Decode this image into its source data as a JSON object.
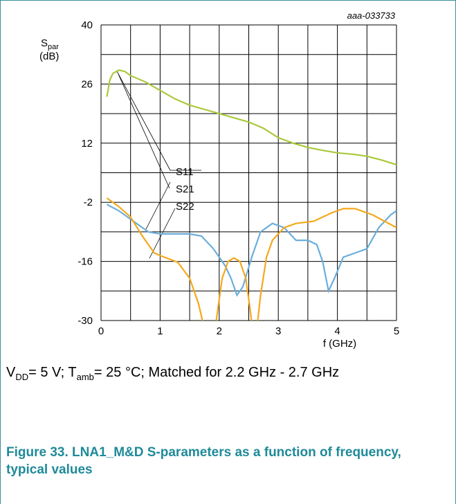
{
  "chart_data": {
    "type": "line",
    "id_label": "aaa-033733",
    "y_label": {
      "main": "S",
      "sub": "par",
      "unit": "(dB)"
    },
    "x_label": "f (GHz)",
    "xlim": [
      0,
      5
    ],
    "xticks": [
      0,
      1,
      2,
      3,
      4,
      5
    ],
    "ylim": [
      -30,
      40
    ],
    "yticks": [
      -30,
      -16,
      -2,
      12,
      26,
      40
    ],
    "grid": true,
    "series": [
      {
        "name": "S11",
        "color": "#6aaedc",
        "x": [
          0.1,
          0.3,
          0.5,
          0.8,
          1.0,
          1.3,
          1.5,
          1.7,
          1.9,
          2.1,
          2.2,
          2.3,
          2.4,
          2.55,
          2.7,
          2.9,
          3.1,
          3.3,
          3.5,
          3.65,
          3.75,
          3.85,
          3.95,
          4.1,
          4.3,
          4.5,
          4.7,
          4.9,
          5.0
        ],
        "values": [
          -2.5,
          -4,
          -6,
          -9,
          -9.5,
          -9.5,
          -9.5,
          -10,
          -13,
          -17,
          -20,
          -24,
          -22,
          -15,
          -9,
          -7,
          -8,
          -11,
          -11,
          -12,
          -16,
          -23,
          -20,
          -15,
          -14,
          -13,
          -8,
          -5,
          -4
        ]
      },
      {
        "name": "S21",
        "color": "#a9c93a",
        "x": [
          0.1,
          0.15,
          0.2,
          0.3,
          0.4,
          0.5,
          0.75,
          1.0,
          1.25,
          1.5,
          1.75,
          2.0,
          2.25,
          2.5,
          2.75,
          3.0,
          3.25,
          3.5,
          3.75,
          4.0,
          4.25,
          4.5,
          4.75,
          5.0
        ],
        "values": [
          23,
          27,
          28.5,
          29.3,
          29,
          28,
          26.5,
          24.5,
          22.5,
          21,
          20,
          19,
          18,
          17,
          15.5,
          13.3,
          12,
          11,
          10.3,
          9.7,
          9.4,
          8.9,
          8,
          6.9
        ]
      },
      {
        "name": "S22",
        "color": "#f4a81c",
        "x": [
          0.1,
          0.3,
          0.5,
          0.7,
          0.9,
          1.0,
          1.3,
          1.5,
          1.65,
          1.75,
          1.8,
          1.9,
          1.95,
          2.05,
          2.15,
          2.25,
          2.35,
          2.45,
          2.52,
          2.58,
          2.62,
          2.7,
          2.8,
          2.9,
          3.1,
          3.3,
          3.6,
          3.9,
          4.1,
          4.3,
          4.6,
          5.0
        ],
        "values": [
          -1,
          -3,
          -5.5,
          -10,
          -14,
          -14.6,
          -16.2,
          -20,
          -26,
          -32,
          -34,
          -34,
          -30,
          -20,
          -16,
          -15.2,
          -16,
          -20,
          -27,
          -34,
          -34,
          -24,
          -15,
          -11,
          -8,
          -7,
          -6.5,
          -4.5,
          -3.5,
          -3.5,
          -5,
          -8
        ]
      }
    ]
  },
  "note": [
    "V",
    "DD",
    "= 5 V; T",
    "amb",
    "= 25 °C; Matched for 2.2 GHz - 2.7 GHz"
  ],
  "caption": "Figure 33.  LNA1_M&D S-parameters as a function of frequency, typical values"
}
